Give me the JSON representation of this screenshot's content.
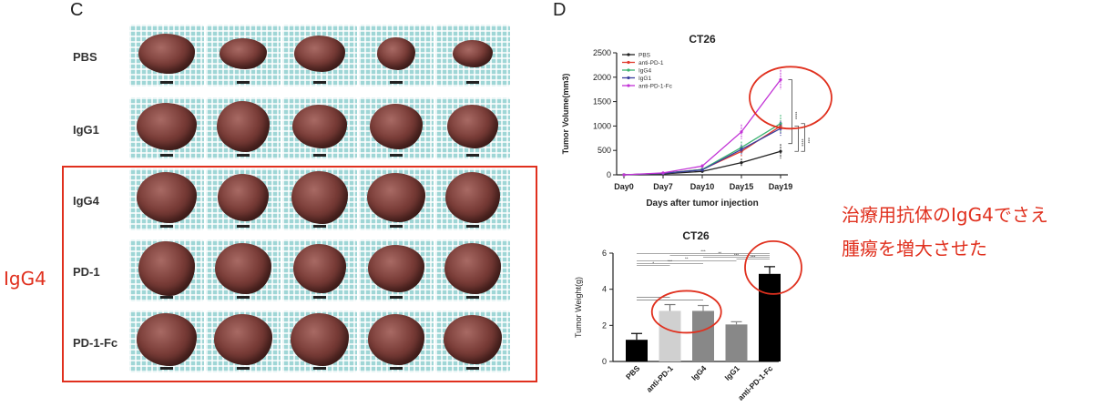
{
  "panels": {
    "c_letter": "C",
    "d_letter": "D"
  },
  "photo_grid": {
    "rows": [
      {
        "label": "PBS",
        "count": 5
      },
      {
        "label": "IgG1",
        "count": 5
      },
      {
        "label": "IgG4",
        "count": 5
      },
      {
        "label": "PD-1",
        "count": 5
      },
      {
        "label": "PD-1-Fc",
        "count": 5
      }
    ],
    "highlight_label": "IgG4"
  },
  "annotation": {
    "line1": "治療用抗体のIgG4でさえ",
    "line2": "腫瘍を増大させた"
  },
  "colors": {
    "highlight": "#e0301e",
    "pbs": "#222222",
    "anti_pd1": "#e23b2e",
    "igg4": "#3cb371",
    "igg1": "#3b3f9e",
    "anti_pd1_fc": "#c233d6",
    "bar_light": "#d0d0d0",
    "bar_mid": "#888888",
    "bar_dark": "#000000"
  },
  "chart_data": [
    {
      "type": "line",
      "title": "CT26",
      "xlabel": "Days after tumor injection",
      "ylabel": "Tumor Volume(mm3)",
      "categories": [
        "Day0",
        "Day7",
        "Day10",
        "Day15",
        "Day19"
      ],
      "ylim": [
        0,
        2500
      ],
      "yticks": [
        "0",
        "500",
        "1000",
        "1500",
        "2000",
        "2500"
      ],
      "legend_position": "top-left",
      "series": [
        {
          "name": "PBS",
          "values": [
            0,
            20,
            70,
            250,
            480
          ],
          "errors": [
            0,
            10,
            20,
            80,
            150
          ]
        },
        {
          "name": "anti-PD-1",
          "values": [
            0,
            30,
            110,
            480,
            1000
          ],
          "errors": [
            0,
            10,
            30,
            100,
            120
          ]
        },
        {
          "name": "IgG4",
          "values": [
            0,
            30,
            110,
            560,
            1050
          ],
          "errors": [
            0,
            10,
            30,
            120,
            180
          ]
        },
        {
          "name": "IgG1",
          "values": [
            0,
            30,
            100,
            520,
            950
          ],
          "errors": [
            0,
            10,
            30,
            100,
            150
          ]
        },
        {
          "name": "anti-PD-1-Fc",
          "values": [
            0,
            40,
            180,
            880,
            1950
          ],
          "errors": [
            0,
            10,
            40,
            150,
            200
          ]
        }
      ],
      "significance": [
        "****",
        "****",
        "***"
      ]
    },
    {
      "type": "bar",
      "title": "CT26",
      "xlabel": "",
      "ylabel": "Tumor Weight(g)",
      "categories": [
        "PBS",
        "anti-PD-1",
        "IgG4",
        "IgG1",
        "anti-PD-1-Fc"
      ],
      "values": [
        1.2,
        2.8,
        2.8,
        2.05,
        4.85
      ],
      "errors": [
        0.35,
        0.35,
        0.3,
        0.15,
        0.4
      ],
      "ylim": [
        0,
        6
      ],
      "yticks": [
        "0",
        "2",
        "4",
        "6"
      ],
      "significance": [
        "***",
        "**",
        "***",
        "***",
        "**",
        "***",
        "*"
      ]
    }
  ]
}
